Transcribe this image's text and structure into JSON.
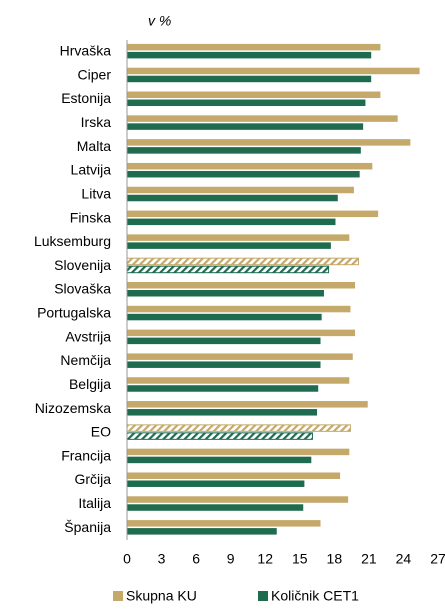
{
  "chart_data": {
    "type": "bar",
    "orientation": "horizontal",
    "unit_label": "v %",
    "categories": [
      "Hrvaška",
      "Ciper",
      "Estonija",
      "Irska",
      "Malta",
      "Latvija",
      "Litva",
      "Finska",
      "Luksemburg",
      "Slovenija",
      "Slovaška",
      "Portugalska",
      "Avstrija",
      "Nemčija",
      "Belgija",
      "Nizozemska",
      "EO",
      "Francija",
      "Grčija",
      "Italija",
      "Španija"
    ],
    "series": [
      {
        "name": "Skupna KU",
        "color": "#c4a96a",
        "values": [
          22.0,
          25.4,
          22.0,
          23.5,
          24.6,
          21.3,
          19.7,
          21.8,
          19.3,
          20.1,
          19.8,
          19.4,
          19.8,
          19.6,
          19.3,
          20.9,
          19.4,
          19.3,
          18.5,
          19.2,
          16.8
        ]
      },
      {
        "name": "Količnik CET1",
        "color": "#1f6b4f",
        "values": [
          21.2,
          21.2,
          20.7,
          20.5,
          20.3,
          20.2,
          18.3,
          18.1,
          17.7,
          17.5,
          17.1,
          16.9,
          16.8,
          16.8,
          16.6,
          16.5,
          16.1,
          16.0,
          15.4,
          15.3,
          13.0
        ]
      }
    ],
    "hatched_categories": [
      9,
      16
    ],
    "xlim": [
      0,
      27
    ],
    "xticks": [
      0,
      3,
      6,
      9,
      12,
      15,
      18,
      21,
      24,
      27
    ],
    "legend": "bottom"
  }
}
